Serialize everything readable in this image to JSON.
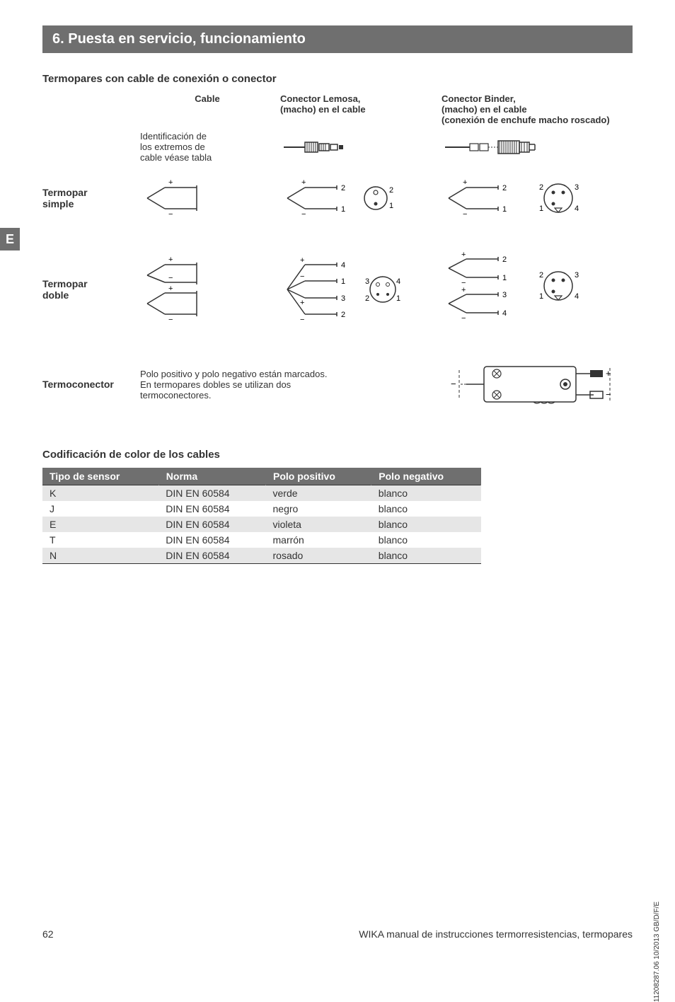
{
  "section": {
    "number_title": "6. Puesta en servicio, funcionamiento"
  },
  "subheading1": "Termopares con cable de conexión o conector",
  "e_tab": "E",
  "headers": {
    "cable": "Cable",
    "cable_note_l1": "Identificación de",
    "cable_note_l2": "los extremos de",
    "cable_note_l3": "cable véase tabla",
    "lemosa_l1": "Conector Lemosa,",
    "lemosa_l2": "(macho) en el cable",
    "binder_l1": "Conector Binder,",
    "binder_l2": "(macho) en el cable",
    "binder_l3": "(conexión de enchufe macho roscado)"
  },
  "rows": {
    "simple_l1": "Termopar",
    "simple_l2": "simple",
    "doble_l1": "Termopar",
    "doble_l2": "doble",
    "termo": "Termoconector",
    "termo_text_l1": "Polo positivo y polo negativo están marcados.",
    "termo_text_l2": "En termopares dobles se utilizan dos",
    "termo_text_l3": "termoconectores."
  },
  "table_heading": "Codificación de color de los cables",
  "table": {
    "headers": {
      "tipo": "Tipo de sensor",
      "norma": "Norma",
      "pos": "Polo positivo",
      "neg": "Polo negativo"
    },
    "rows": [
      {
        "tipo": "K",
        "norma": "DIN EN 60584",
        "pos": "verde",
        "neg": "blanco",
        "alt": true
      },
      {
        "tipo": "J",
        "norma": "DIN EN 60584",
        "pos": "negro",
        "neg": "blanco",
        "alt": false
      },
      {
        "tipo": "E",
        "norma": "DIN EN 60584",
        "pos": "violeta",
        "neg": "blanco",
        "alt": true
      },
      {
        "tipo": "T",
        "norma": "DIN EN 60584",
        "pos": "marrón",
        "neg": "blanco",
        "alt": false
      },
      {
        "tipo": "N",
        "norma": "DIN EN 60584",
        "pos": "rosado",
        "neg": "blanco",
        "alt": true
      }
    ]
  },
  "footer": {
    "page": "62",
    "text": "WIKA manual de instrucciones termorresistencias, termopares"
  },
  "side": "11208287.06 10/2013 GB/D/F/E",
  "colors": {
    "bar": "#6f6f6f",
    "text": "#333333",
    "alt_row": "#e6e6e6"
  },
  "diagram_labels": {
    "plus": "+",
    "minus": "−",
    "n1": "1",
    "n2": "2",
    "n3": "3",
    "n4": "4"
  }
}
